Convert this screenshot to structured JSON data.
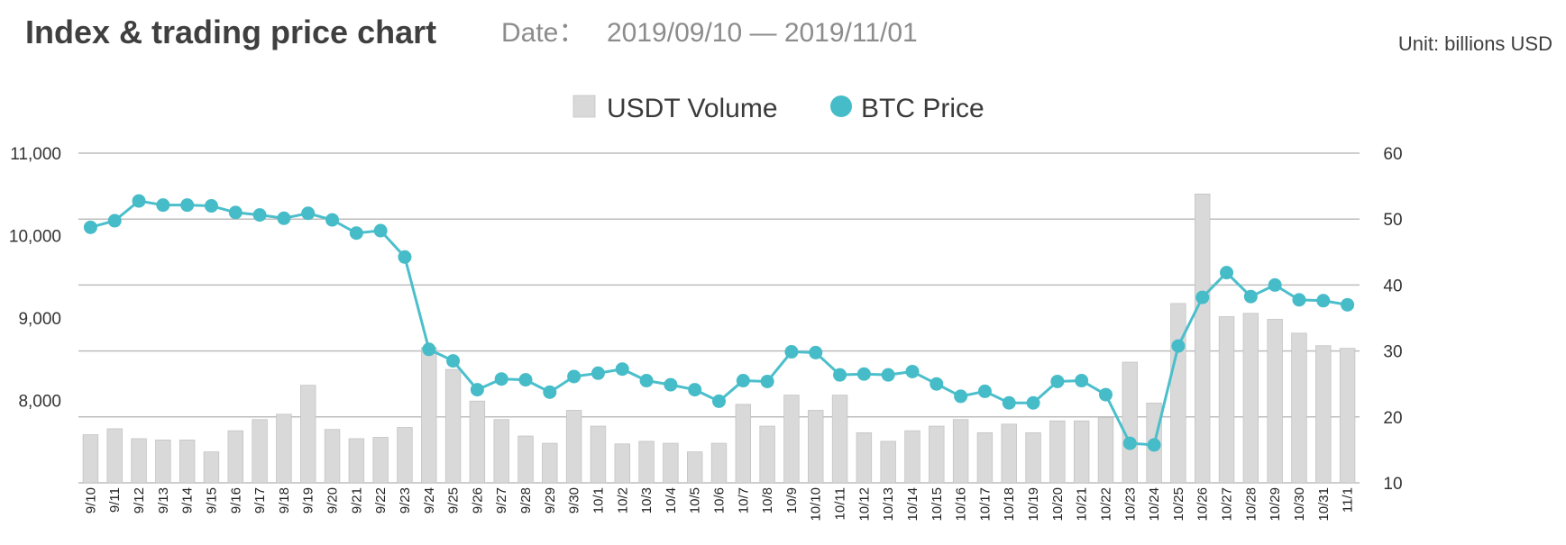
{
  "chart_data": {
    "type": "bar+line",
    "title": "Index & trading price chart",
    "date_label": "Date：",
    "date_range": "2019/09/10 — 2019/11/01",
    "unit": "Unit: billions USD",
    "legend_placement": "top-center",
    "grid": true,
    "categories": [
      "9/10",
      "9/11",
      "9/12",
      "9/13",
      "9/14",
      "9/15",
      "9/16",
      "9/17",
      "9/18",
      "9/19",
      "9/20",
      "9/21",
      "9/22",
      "9/23",
      "9/24",
      "9/25",
      "9/26",
      "9/27",
      "9/28",
      "9/29",
      "9/30",
      "10/1",
      "10/2",
      "10/3",
      "10/4",
      "10/5",
      "10/6",
      "10/7",
      "10/8",
      "10/9",
      "10/10",
      "10/11",
      "10/12",
      "10/13",
      "10/14",
      "10/15",
      "10/16",
      "10/17",
      "10/18",
      "10/19",
      "10/20",
      "10/21",
      "10/22",
      "10/23",
      "10/24",
      "10/25",
      "10/26",
      "10/27",
      "10/28",
      "10/29",
      "10/30",
      "10/31",
      "11/1"
    ],
    "left_axis": {
      "min": 7000,
      "max": 11000,
      "ticks": [
        11000,
        10000,
        9000,
        8000
      ],
      "tick_labels": [
        "11,000",
        "10,000",
        "9,000",
        "8,000"
      ]
    },
    "right_axis": {
      "min": 10,
      "max": 60,
      "ticks": [
        60,
        50,
        40,
        30,
        20,
        10
      ],
      "tick_labels": [
        "60",
        "50",
        "40",
        "30",
        "20",
        "10"
      ]
    },
    "series": [
      {
        "name": "USDT Volume",
        "type": "bar",
        "axis": "right",
        "color": "#d9d9d9",
        "values": [
          17.3,
          18.2,
          16.7,
          16.5,
          16.5,
          14.7,
          17.9,
          19.6,
          20.4,
          24.8,
          18.1,
          16.7,
          16.9,
          18.4,
          30.5,
          27.2,
          22.4,
          19.6,
          17.1,
          16.0,
          21.0,
          18.6,
          15.9,
          16.3,
          16.0,
          14.7,
          16.0,
          21.9,
          18.6,
          23.3,
          21.0,
          23.3,
          17.6,
          16.3,
          17.9,
          18.6,
          19.6,
          17.6,
          18.9,
          17.6,
          19.4,
          19.4,
          19.9,
          28.3,
          22.1,
          37.2,
          53.8,
          35.2,
          35.7,
          34.8,
          32.7,
          30.8,
          30.4
        ]
      },
      {
        "name": "BTC Price",
        "type": "line",
        "axis": "left",
        "color": "#45bcc8",
        "values": [
          10100,
          10180,
          10420,
          10370,
          10370,
          10360,
          10280,
          10250,
          10210,
          10270,
          10190,
          10030,
          10060,
          9740,
          8620,
          8480,
          8130,
          8260,
          8250,
          8100,
          8290,
          8330,
          8380,
          8240,
          8190,
          8130,
          7990,
          8240,
          8230,
          8590,
          8580,
          8310,
          8320,
          8310,
          8350,
          8200,
          8050,
          8110,
          7970,
          7970,
          8230,
          8240,
          8070,
          7480,
          7460,
          8660,
          9250,
          9550,
          9260,
          9400,
          9220,
          9210,
          9160
        ]
      }
    ]
  }
}
